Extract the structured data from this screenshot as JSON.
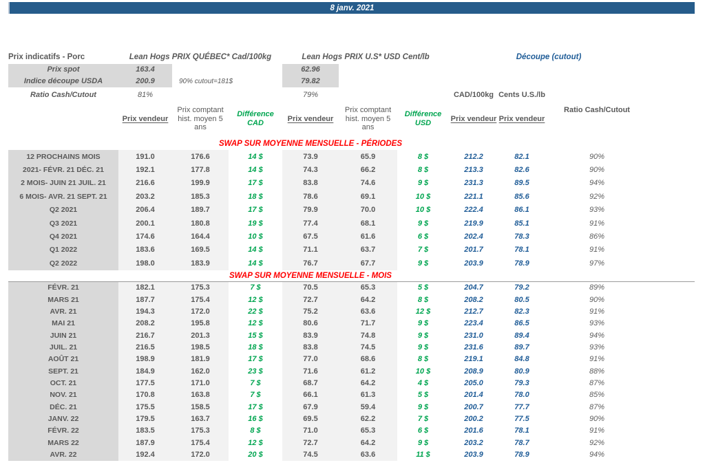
{
  "banner": {
    "date": "8 janv. 2021"
  },
  "info": {
    "title": "Prix indicatifs - Porc",
    "quebec_header": "Lean Hogs PRIX QUÉBEC* Cad/100kg",
    "us_header": "Lean Hogs PRIX U.S* USD Cent/lb",
    "cutout_header": "Découpe (cutout)",
    "spot_label": "Prix spot",
    "spot_cad": "163.4",
    "spot_usd": "62.96",
    "usda_label": "Indice découpe USDA",
    "usda_cad": "200.9",
    "usda_usd": "79.82",
    "cutout_note": "90% cutout=181$",
    "ratio_label": "Ratio Cash/Cutout",
    "ratio_cad": "81%",
    "ratio_usd": "79%",
    "cutout_unit_cad": "CAD/100kg",
    "cutout_unit_usd": "Cents U.S./lb"
  },
  "columns": {
    "prix_vendeur": "Prix vendeur",
    "prix_comptant": "Prix comptant hist. moyen 5 ans",
    "difference_cad": "Différence CAD",
    "difference_usd": "Différence USD",
    "decoupe_prix_vendeur_cad": "Prix vendeur",
    "decoupe_prix_vendeur_usd": "Prix vendeur",
    "ratio": "Ratio Cash/Cutout"
  },
  "sections": [
    {
      "title": "SWAP SUR MOYENNE MENSUELLE - PÉRIODES",
      "rows": [
        {
          "label": "12 PROCHAINS MOIS",
          "values": [
            "191.0",
            "176.6",
            "14 $",
            "73.9",
            "65.9",
            "8 $",
            "212.2",
            "82.1",
            "90%"
          ]
        },
        {
          "label": "2021- FÉVR. 21 DÉC. 21",
          "values": [
            "192.1",
            "177.8",
            "14 $",
            "74.3",
            "66.2",
            "8 $",
            "213.3",
            "82.6",
            "90%"
          ]
        },
        {
          "label": "2 MOIS- JUIN 21 JUIL. 21",
          "values": [
            "216.6",
            "199.9",
            "17 $",
            "83.8",
            "74.6",
            "9 $",
            "231.3",
            "89.5",
            "94%"
          ]
        },
        {
          "label": "6 MOIS- AVR. 21 SEPT. 21",
          "values": [
            "203.2",
            "185.3",
            "18 $",
            "78.6",
            "69.1",
            "10 $",
            "221.1",
            "85.6",
            "92%"
          ]
        },
        {
          "label": "Q2 2021",
          "values": [
            "206.4",
            "189.7",
            "17 $",
            "79.9",
            "70.0",
            "10 $",
            "222.4",
            "86.1",
            "93%"
          ]
        },
        {
          "label": "Q3 2021",
          "values": [
            "200.1",
            "180.8",
            "19 $",
            "77.4",
            "68.1",
            "9 $",
            "219.9",
            "85.1",
            "91%"
          ]
        },
        {
          "label": "Q4 2021",
          "values": [
            "174.6",
            "164.4",
            "10 $",
            "67.5",
            "61.6",
            "6 $",
            "202.4",
            "78.3",
            "86%"
          ]
        },
        {
          "label": "Q1 2022",
          "values": [
            "183.6",
            "169.5",
            "14 $",
            "71.1",
            "63.7",
            "7 $",
            "201.7",
            "78.1",
            "91%"
          ]
        },
        {
          "label": "Q2 2022",
          "values": [
            "198.0",
            "183.9",
            "14 $",
            "76.7",
            "67.7",
            "9 $",
            "203.9",
            "78.9",
            "97%"
          ]
        }
      ]
    },
    {
      "title": "SWAP SUR MOYENNE MENSUELLE - MOIS",
      "rows": [
        {
          "label": "FÉVR. 21",
          "values": [
            "182.1",
            "175.3",
            "7 $",
            "70.5",
            "65.3",
            "5 $",
            "204.7",
            "79.2",
            "89%"
          ]
        },
        {
          "label": "MARS 21",
          "values": [
            "187.7",
            "175.4",
            "12 $",
            "72.7",
            "64.2",
            "8 $",
            "208.2",
            "80.5",
            "90%"
          ]
        },
        {
          "label": "AVR. 21",
          "values": [
            "194.3",
            "172.0",
            "22 $",
            "75.2",
            "63.6",
            "12 $",
            "212.7",
            "82.3",
            "91%"
          ]
        },
        {
          "label": "MAI 21",
          "values": [
            "208.2",
            "195.8",
            "12 $",
            "80.6",
            "71.7",
            "9 $",
            "223.4",
            "86.5",
            "93%"
          ]
        },
        {
          "label": "JUIN 21",
          "values": [
            "216.7",
            "201.3",
            "15 $",
            "83.9",
            "74.8",
            "9 $",
            "231.0",
            "89.4",
            "94%"
          ]
        },
        {
          "label": "JUIL. 21",
          "values": [
            "216.5",
            "198.5",
            "18 $",
            "83.8",
            "74.5",
            "9 $",
            "231.6",
            "89.7",
            "93%"
          ]
        },
        {
          "label": "AOÛT 21",
          "values": [
            "198.9",
            "181.9",
            "17 $",
            "77.0",
            "68.6",
            "8 $",
            "219.1",
            "84.8",
            "91%"
          ]
        },
        {
          "label": "SEPT. 21",
          "values": [
            "184.9",
            "162.0",
            "23 $",
            "71.6",
            "61.2",
            "10 $",
            "208.9",
            "80.9",
            "88%"
          ]
        },
        {
          "label": "OCT. 21",
          "values": [
            "177.5",
            "171.0",
            "7 $",
            "68.7",
            "64.2",
            "4 $",
            "205.0",
            "79.3",
            "87%"
          ]
        },
        {
          "label": "NOV. 21",
          "values": [
            "170.8",
            "163.8",
            "7 $",
            "66.1",
            "61.3",
            "5 $",
            "201.4",
            "78.0",
            "85%"
          ]
        },
        {
          "label": "DÉC. 21",
          "values": [
            "175.5",
            "158.5",
            "17 $",
            "67.9",
            "59.4",
            "9 $",
            "200.7",
            "77.7",
            "87%"
          ]
        },
        {
          "label": "JANV. 22",
          "values": [
            "179.5",
            "163.7",
            "16 $",
            "69.5",
            "62.2",
            "7 $",
            "200.2",
            "77.5",
            "90%"
          ]
        },
        {
          "label": "FÉVR. 22",
          "values": [
            "183.5",
            "175.3",
            "8 $",
            "71.0",
            "65.3",
            "6 $",
            "201.6",
            "78.1",
            "91%"
          ]
        },
        {
          "label": "MARS 22",
          "values": [
            "187.9",
            "175.4",
            "12 $",
            "72.7",
            "64.2",
            "9 $",
            "203.2",
            "78.7",
            "92%"
          ]
        },
        {
          "label": "AVR. 22",
          "values": [
            "192.4",
            "172.0",
            "20 $",
            "74.5",
            "63.6",
            "11 $",
            "203.9",
            "78.9",
            "94%"
          ]
        }
      ]
    }
  ],
  "colors": {
    "banner_blue": "#265C8B",
    "text_blue": "#1F5C97",
    "green": "#00A550",
    "red": "#FF0000",
    "dark_gray": "#595959",
    "label_bg": "#D9D9D9",
    "column_bg": "#F2F2F2"
  }
}
